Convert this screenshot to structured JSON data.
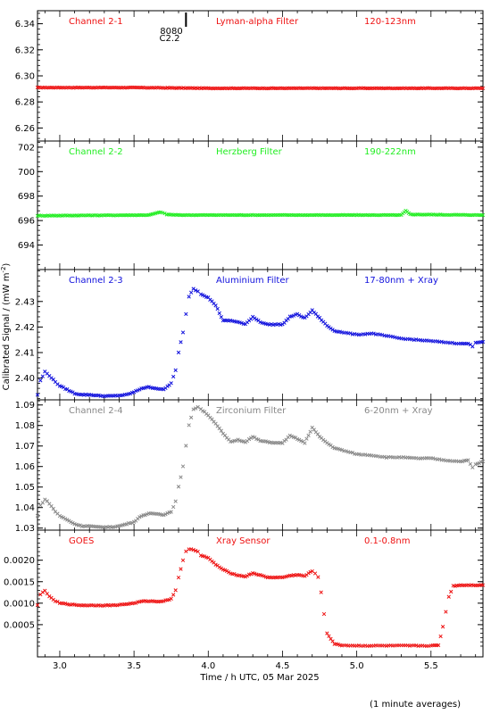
{
  "figure": {
    "ylabel": "Calibrated Signal / (mW m",
    "ylabel_sup": "-2",
    "ylabel_close": ")",
    "xlabel": "Time / h UTC, 05 Mar 2025",
    "note": "(1 minute averages)",
    "marker_label_top": "8080",
    "marker_label_bottom": "C2.2"
  },
  "chart_data": [
    {
      "type": "scatter",
      "name_label": "Channel 2-1",
      "filter_label": "Lyman-alpha Filter",
      "band_label": "120-123nm",
      "color": "#ee1111",
      "xlim": [
        2.85,
        5.85
      ],
      "ylim": [
        6.25,
        6.35
      ],
      "ticks": [
        6.26,
        6.28,
        6.3,
        6.32,
        6.34
      ],
      "tick_labels": [
        "6.26",
        "6.28",
        "6.30",
        "6.32",
        "6.34"
      ],
      "x": [
        2.85,
        3.5,
        4.0,
        4.5,
        5.0,
        5.5,
        5.85
      ],
      "y": [
        6.291,
        6.291,
        6.2905,
        6.2905,
        6.2905,
        6.2905,
        6.2905
      ]
    },
    {
      "type": "scatter",
      "name_label": "Channel 2-2",
      "filter_label": "Herzberg Filter",
      "band_label": "190-222nm",
      "color": "#22ee22",
      "xlim": [
        2.85,
        5.85
      ],
      "ylim": [
        692.0,
        702.5
      ],
      "ticks": [
        694,
        696,
        698,
        700,
        702
      ],
      "tick_labels": [
        "694",
        "696",
        "698",
        "700",
        "702"
      ],
      "x": [
        2.85,
        3.6,
        3.68,
        3.72,
        3.8,
        4.5,
        5.3,
        5.33,
        5.36,
        5.85
      ],
      "y": [
        696.4,
        696.45,
        696.7,
        696.5,
        696.45,
        696.45,
        696.45,
        696.8,
        696.5,
        696.45
      ]
    },
    {
      "type": "scatter",
      "name_label": "Channel 2-3",
      "filter_label": "Aluminium Filter",
      "band_label": "17-80nm + Xray",
      "color": "#1111dd",
      "xlim": [
        2.85,
        5.85
      ],
      "ylim": [
        2.3915,
        2.4425
      ],
      "ticks": [
        2.4,
        2.41,
        2.42,
        2.43
      ],
      "tick_labels": [
        "2.40",
        "2.41",
        "2.42",
        "2.43"
      ],
      "x": [
        2.85,
        2.87,
        2.9,
        2.93,
        2.97,
        3.0,
        3.05,
        3.1,
        3.15,
        3.2,
        3.25,
        3.3,
        3.35,
        3.4,
        3.45,
        3.5,
        3.55,
        3.6,
        3.65,
        3.7,
        3.75,
        3.78,
        3.8,
        3.83,
        3.85,
        3.87,
        3.9,
        3.93,
        3.95,
        4.0,
        4.05,
        4.1,
        4.15,
        4.2,
        4.25,
        4.3,
        4.35,
        4.4,
        4.45,
        4.5,
        4.55,
        4.6,
        4.65,
        4.7,
        4.75,
        4.8,
        4.85,
        4.9,
        5.0,
        5.1,
        5.2,
        5.3,
        5.4,
        5.5,
        5.6,
        5.7,
        5.75,
        5.78,
        5.8,
        5.85
      ],
      "y": [
        2.3935,
        2.399,
        2.4025,
        2.401,
        2.3985,
        2.397,
        2.3955,
        2.394,
        2.3935,
        2.3935,
        2.3932,
        2.393,
        2.393,
        2.3932,
        2.3935,
        2.3945,
        2.396,
        2.3965,
        2.396,
        2.3955,
        2.398,
        2.403,
        2.41,
        2.418,
        2.425,
        2.432,
        2.435,
        2.434,
        2.433,
        2.4315,
        2.4285,
        2.4225,
        2.4225,
        2.422,
        2.421,
        2.424,
        2.422,
        2.421,
        2.421,
        2.421,
        2.424,
        2.425,
        2.4235,
        2.4265,
        2.4235,
        2.4205,
        2.4185,
        2.418,
        2.417,
        2.4175,
        2.4165,
        2.4155,
        2.415,
        2.4145,
        2.414,
        2.4135,
        2.4135,
        2.4125,
        2.414,
        2.4142
      ]
    },
    {
      "type": "scatter",
      "name_label": "Channel 2-4",
      "filter_label": "Zirconium Filter",
      "band_label": "6-20nm + Xray",
      "color": "#888888",
      "xlim": [
        2.85,
        5.85
      ],
      "ylim": [
        1.029,
        1.0925
      ],
      "ticks": [
        1.03,
        1.04,
        1.05,
        1.06,
        1.07,
        1.08,
        1.09
      ],
      "tick_labels": [
        "1.03",
        "1.04",
        "1.05",
        "1.06",
        "1.07",
        "1.08",
        "1.09"
      ],
      "x": [
        2.85,
        2.87,
        2.9,
        2.93,
        2.97,
        3.0,
        3.05,
        3.1,
        3.15,
        3.2,
        3.25,
        3.3,
        3.35,
        3.4,
        3.45,
        3.5,
        3.55,
        3.6,
        3.65,
        3.7,
        3.75,
        3.78,
        3.8,
        3.83,
        3.85,
        3.87,
        3.9,
        3.93,
        3.95,
        4.0,
        4.05,
        4.1,
        4.15,
        4.2,
        4.25,
        4.3,
        4.35,
        4.4,
        4.45,
        4.5,
        4.55,
        4.6,
        4.65,
        4.7,
        4.75,
        4.8,
        4.85,
        4.9,
        5.0,
        5.1,
        5.2,
        5.3,
        5.4,
        5.5,
        5.6,
        5.7,
        5.75,
        5.78,
        5.8,
        5.85
      ],
      "y": [
        1.036,
        1.041,
        1.044,
        1.042,
        1.038,
        1.036,
        1.034,
        1.032,
        1.031,
        1.031,
        1.0305,
        1.0305,
        1.0305,
        1.031,
        1.032,
        1.033,
        1.036,
        1.037,
        1.037,
        1.0365,
        1.038,
        1.043,
        1.05,
        1.06,
        1.07,
        1.08,
        1.088,
        1.089,
        1.088,
        1.085,
        1.081,
        1.076,
        1.072,
        1.073,
        1.072,
        1.0745,
        1.0725,
        1.072,
        1.0715,
        1.0715,
        1.075,
        1.0735,
        1.0715,
        1.079,
        1.0745,
        1.0715,
        1.069,
        1.068,
        1.066,
        1.0655,
        1.0645,
        1.0645,
        1.064,
        1.064,
        1.063,
        1.0625,
        1.063,
        1.0595,
        1.061,
        1.0625
      ]
    },
    {
      "type": "scatter",
      "name_label": "GOES",
      "filter_label": "Xray Sensor",
      "band_label": "0.1-0.8nm",
      "color": "#ee1111",
      "xlim": [
        2.85,
        5.85
      ],
      "ylim": [
        -0.00025,
        0.0027
      ],
      "ticks": [
        0.0005,
        0.001,
        0.0015,
        0.002
      ],
      "tick_labels": [
        "0.0005",
        "0.0010",
        "0.0015",
        "0.0020"
      ],
      "x": [
        2.85,
        2.87,
        2.9,
        2.93,
        2.97,
        3.0,
        3.05,
        3.1,
        3.15,
        3.2,
        3.25,
        3.3,
        3.35,
        3.4,
        3.45,
        3.5,
        3.55,
        3.6,
        3.65,
        3.7,
        3.75,
        3.78,
        3.8,
        3.83,
        3.85,
        3.87,
        3.9,
        3.93,
        3.95,
        4.0,
        4.05,
        4.1,
        4.15,
        4.2,
        4.25,
        4.3,
        4.35,
        4.4,
        4.45,
        4.5,
        4.55,
        4.6,
        4.65,
        4.7,
        4.72,
        4.74,
        4.76,
        4.78,
        4.8,
        4.85,
        4.9,
        5.0,
        5.2,
        5.4,
        5.5,
        5.55,
        5.58,
        5.6,
        5.62,
        5.65,
        5.7,
        5.75,
        5.8,
        5.85
      ],
      "y": [
        0.00095,
        0.0012,
        0.0013,
        0.00115,
        0.00105,
        0.001,
        0.00098,
        0.00096,
        0.00095,
        0.00095,
        0.00095,
        0.00095,
        0.00095,
        0.00096,
        0.00098,
        0.001,
        0.00104,
        0.00105,
        0.00104,
        0.00105,
        0.0011,
        0.0013,
        0.0016,
        0.002,
        0.0022,
        0.00225,
        0.00225,
        0.0022,
        0.00212,
        0.00205,
        0.0019,
        0.00178,
        0.0017,
        0.00165,
        0.00162,
        0.0017,
        0.00165,
        0.0016,
        0.0016,
        0.0016,
        0.00164,
        0.00166,
        0.00163,
        0.00175,
        0.0017,
        0.0016,
        0.00125,
        0.00075,
        0.0003,
        5e-05,
        2e-05,
        1e-05,
        1e-05,
        1e-05,
        1e-05,
        2e-05,
        0.00045,
        0.0008,
        0.00115,
        0.0014,
        0.00142,
        0.00142,
        0.00142,
        0.00142
      ]
    }
  ],
  "x_axis": {
    "ticks": [
      3.0,
      3.5,
      4.0,
      4.5,
      5.0,
      5.5
    ],
    "tick_labels": [
      "3.0",
      "3.5",
      "4.0",
      "4.5",
      "5.0",
      "5.5"
    ],
    "marker_x": 3.85
  }
}
